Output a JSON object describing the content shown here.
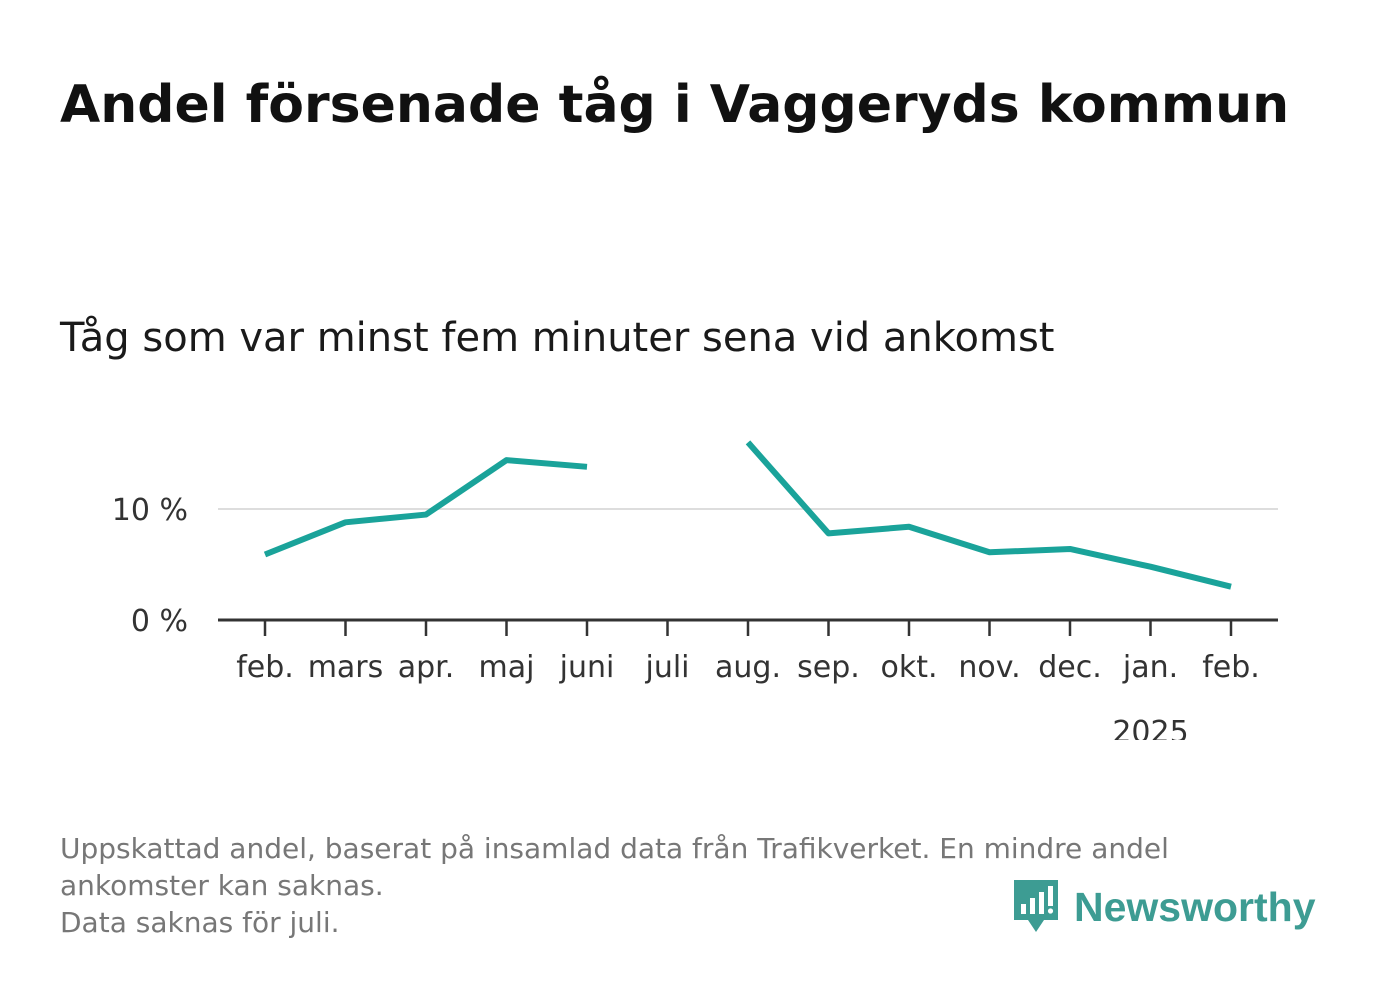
{
  "title": "Andel försenade tåg i Vaggeryds kommun",
  "subtitle": "Tåg som var minst fem minuter sena vid ankomst",
  "footnote": [
    "Uppskattad andel, baserat på insamlad data från Trafikverket. En mindre andel",
    "ankomster kan saknas.",
    "Data saknas för juli."
  ],
  "brand": {
    "name": "Newsworthy",
    "color": "#3d9c93",
    "icon": "bar-chart-speech-bubble-icon"
  },
  "colors": {
    "line": "#1aa39a",
    "grid": "#dddddd",
    "axis": "#333333"
  },
  "chart_data": {
    "type": "line",
    "title": "Andel försenade tåg i Vaggeryds kommun",
    "subtitle": "Tåg som var minst fem minuter sena vid ankomst",
    "xlabel": "",
    "ylabel": "",
    "categories": [
      "feb.",
      "mars",
      "apr.",
      "maj",
      "juni",
      "juli",
      "aug.",
      "sep.",
      "okt.",
      "nov.",
      "dec.",
      "jan.",
      "feb."
    ],
    "year_label": {
      "under": "jan.",
      "text": "2025"
    },
    "series": [
      {
        "values": [
          5.9,
          8.8,
          9.5,
          14.4,
          13.8,
          null,
          16.0,
          7.8,
          8.4,
          6.1,
          6.4,
          4.8,
          3.0
        ]
      }
    ],
    "y_ticks": [
      {
        "value": 0,
        "label": "0 %"
      },
      {
        "value": 10,
        "label": "10 %"
      }
    ],
    "ylim": [
      0,
      16
    ],
    "grid": true,
    "legend": "none"
  }
}
